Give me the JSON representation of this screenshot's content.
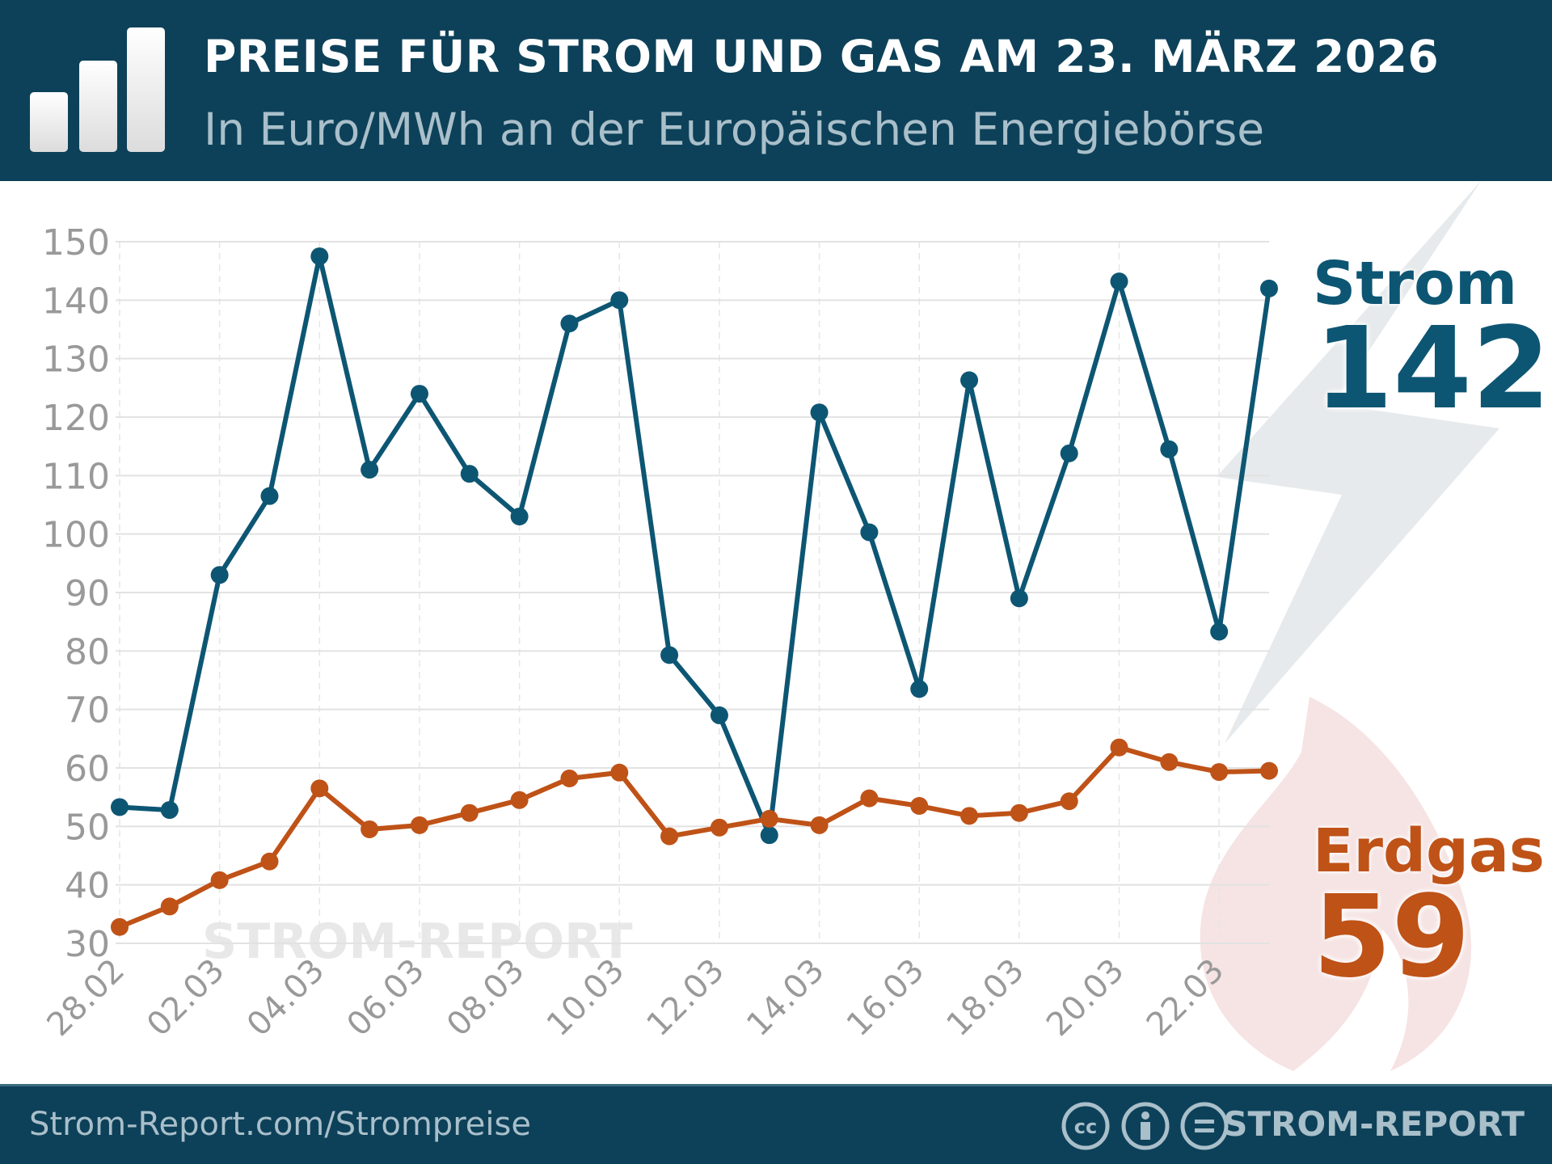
{
  "header": {
    "title": "PREISE FÜR STROM UND GAS AM 23. MÄRZ 2026",
    "subtitle": "In Euro/MWh an der Europäischen Energiebörse",
    "logo_icon": "bar-chart-icon"
  },
  "watermark": "STROM-REPORT",
  "labels": {
    "strom_name": "Strom",
    "strom_value": "142",
    "gas_name": "Erdgas",
    "gas_value": "59"
  },
  "footer": {
    "url": "Strom-Report.com/Strompreise",
    "brand": "STROM-REPORT",
    "license_icons": [
      "cc-icon",
      "attribution-icon",
      "no-derivatives-icon"
    ]
  },
  "colors": {
    "header_bg": "#0d4159",
    "strom": "#0d5673",
    "gas": "#bf5217",
    "grid": "#e2e2e2",
    "tick": "#999999"
  },
  "chart_data": {
    "type": "line",
    "title": "PREISE FÜR STROM UND GAS AM 23. MÄRZ 2026",
    "subtitle": "In Euro/MWh an der Europäischen Energiebörse",
    "x": [
      "28.02",
      "01.03",
      "02.03",
      "03.03",
      "04.03",
      "05.03",
      "06.03",
      "07.03",
      "08.03",
      "09.03",
      "10.03",
      "11.03",
      "12.03",
      "13.03",
      "14.03",
      "15.03",
      "16.03",
      "17.03",
      "18.03",
      "19.03",
      "20.03",
      "21.03",
      "22.03",
      "23.03"
    ],
    "xticks": [
      "28.02",
      "02.03",
      "04.03",
      "06.03",
      "08.03",
      "10.03",
      "12.03",
      "14.03",
      "16.03",
      "18.03",
      "20.03",
      "22.03"
    ],
    "yticks": [
      30,
      40,
      50,
      60,
      70,
      80,
      90,
      100,
      110,
      120,
      130,
      140,
      150
    ],
    "ylim": [
      30,
      150
    ],
    "grid": true,
    "series": [
      {
        "name": "Strom",
        "color": "#0d5673",
        "values": [
          53.3,
          52.8,
          93,
          106.5,
          147.5,
          111,
          124,
          110.3,
          103,
          136,
          140,
          79.3,
          69,
          48.5,
          120.8,
          100.3,
          73.5,
          126.3,
          89,
          113.8,
          143.2,
          114.5,
          83.3,
          142
        ]
      },
      {
        "name": "Erdgas",
        "color": "#bf5217",
        "values": [
          32.8,
          36.3,
          40.8,
          44,
          56.5,
          49.5,
          50.2,
          52.3,
          54.5,
          58.2,
          59.2,
          48.3,
          49.8,
          51.3,
          50.2,
          54.8,
          53.5,
          51.8,
          52.3,
          54.3,
          63.5,
          61,
          59.3,
          59.5
        ]
      }
    ]
  }
}
